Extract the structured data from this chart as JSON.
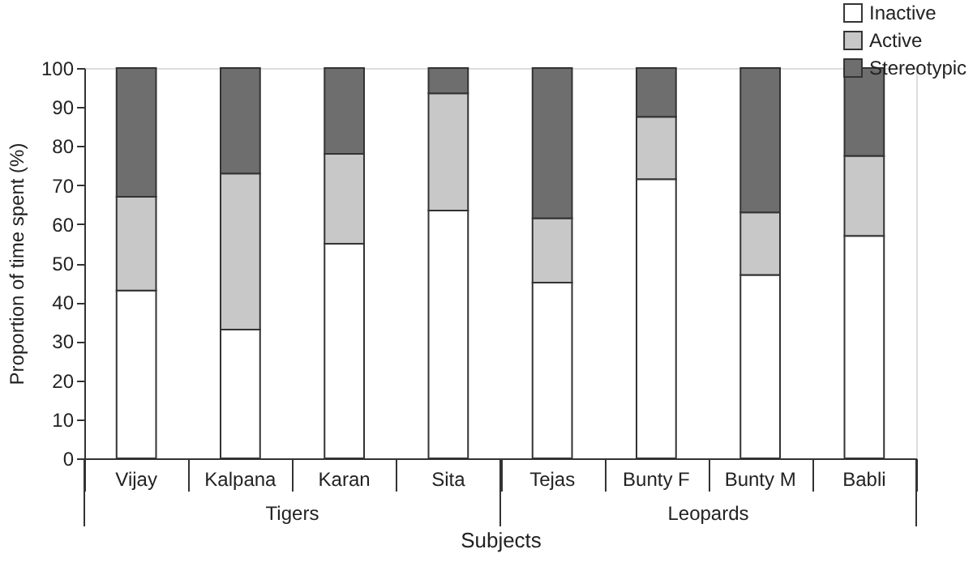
{
  "chart_data": {
    "type": "bar",
    "stacked": true,
    "categories": [
      "Vijay",
      "Kalpana",
      "Karan",
      "Sita",
      "Tejas",
      "Bunty F",
      "Bunty M",
      "Babli"
    ],
    "series": [
      {
        "name": "Inactive",
        "color": "#ffffff",
        "values": [
          43,
          33,
          55,
          63.5,
          45,
          71.5,
          47,
          57
        ]
      },
      {
        "name": "Active",
        "color": "#c8c8c8",
        "values": [
          24,
          40,
          23,
          30,
          16.5,
          16,
          16,
          20.5
        ]
      },
      {
        "name": "Stereotypic",
        "color": "#6e6e6e",
        "values": [
          33,
          27,
          22,
          6.5,
          38.5,
          12.5,
          37,
          22.5
        ]
      }
    ],
    "annotations": [
      "Tigers",
      "Leopards"
    ],
    "xlabel": "Subjects",
    "ylabel": "Proportion of time spent (%)",
    "ylim": [
      0,
      100
    ],
    "yticks": [
      0,
      10,
      20,
      30,
      40,
      50,
      60,
      70,
      80,
      90,
      100
    ],
    "legend": "top right",
    "grid": false
  }
}
